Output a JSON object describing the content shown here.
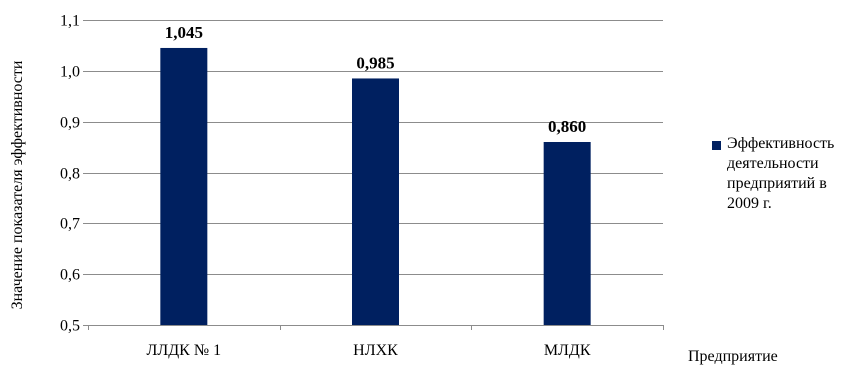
{
  "chart_data": {
    "type": "bar",
    "categories": [
      "ЛЛДК № 1",
      "НЛХК",
      "МЛДК"
    ],
    "series": [
      {
        "name": "Эффективность деятельности предприятий в 2009 г.",
        "values": [
          1.045,
          0.985,
          0.86
        ],
        "labels": [
          "1,045",
          "0,985",
          "0,860"
        ],
        "color": "#002060"
      }
    ],
    "ylabel": "Значение показателя эффективности",
    "xlabel": "Предприятие",
    "ylim": [
      0.5,
      1.1
    ],
    "yticks": [
      0.5,
      0.6,
      0.7,
      0.8,
      0.9,
      1.0,
      1.1
    ],
    "ytick_labels": [
      "0,5",
      "0,6",
      "0,7",
      "0,8",
      "0,9",
      "1,0",
      "1,1"
    ],
    "grid": true,
    "legend_position": "right",
    "colors": {
      "bar": "#002060",
      "grid": "#8c8c8c",
      "axis": "#8c8c8c"
    }
  }
}
